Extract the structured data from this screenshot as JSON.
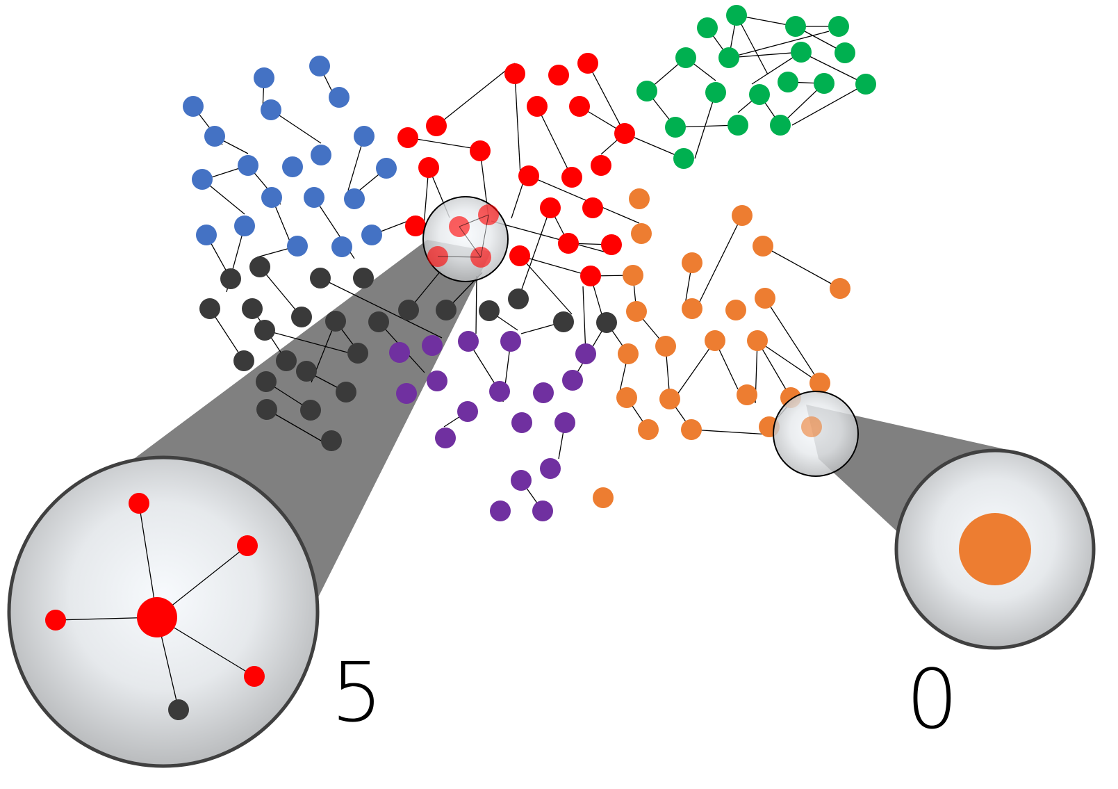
{
  "colors": {
    "blue": "#4472c4",
    "red": "#ff0000",
    "green": "#00b050",
    "orange": "#ed7d31",
    "purple": "#7030a0",
    "black": "#3a3a3a",
    "beam": "#808080",
    "lens_edge": "#404040",
    "link": "#000000"
  },
  "degree_labels": {
    "left": "5",
    "right": "0"
  },
  "magnifiers": [
    {
      "name": "high-degree-node-magnifier",
      "target_color": "red",
      "degree": 5
    },
    {
      "name": "isolated-node-magnifier",
      "target_color": "orange",
      "degree": 0
    }
  ],
  "communities": [
    "blue",
    "red",
    "green",
    "orange",
    "purple",
    "black"
  ]
}
